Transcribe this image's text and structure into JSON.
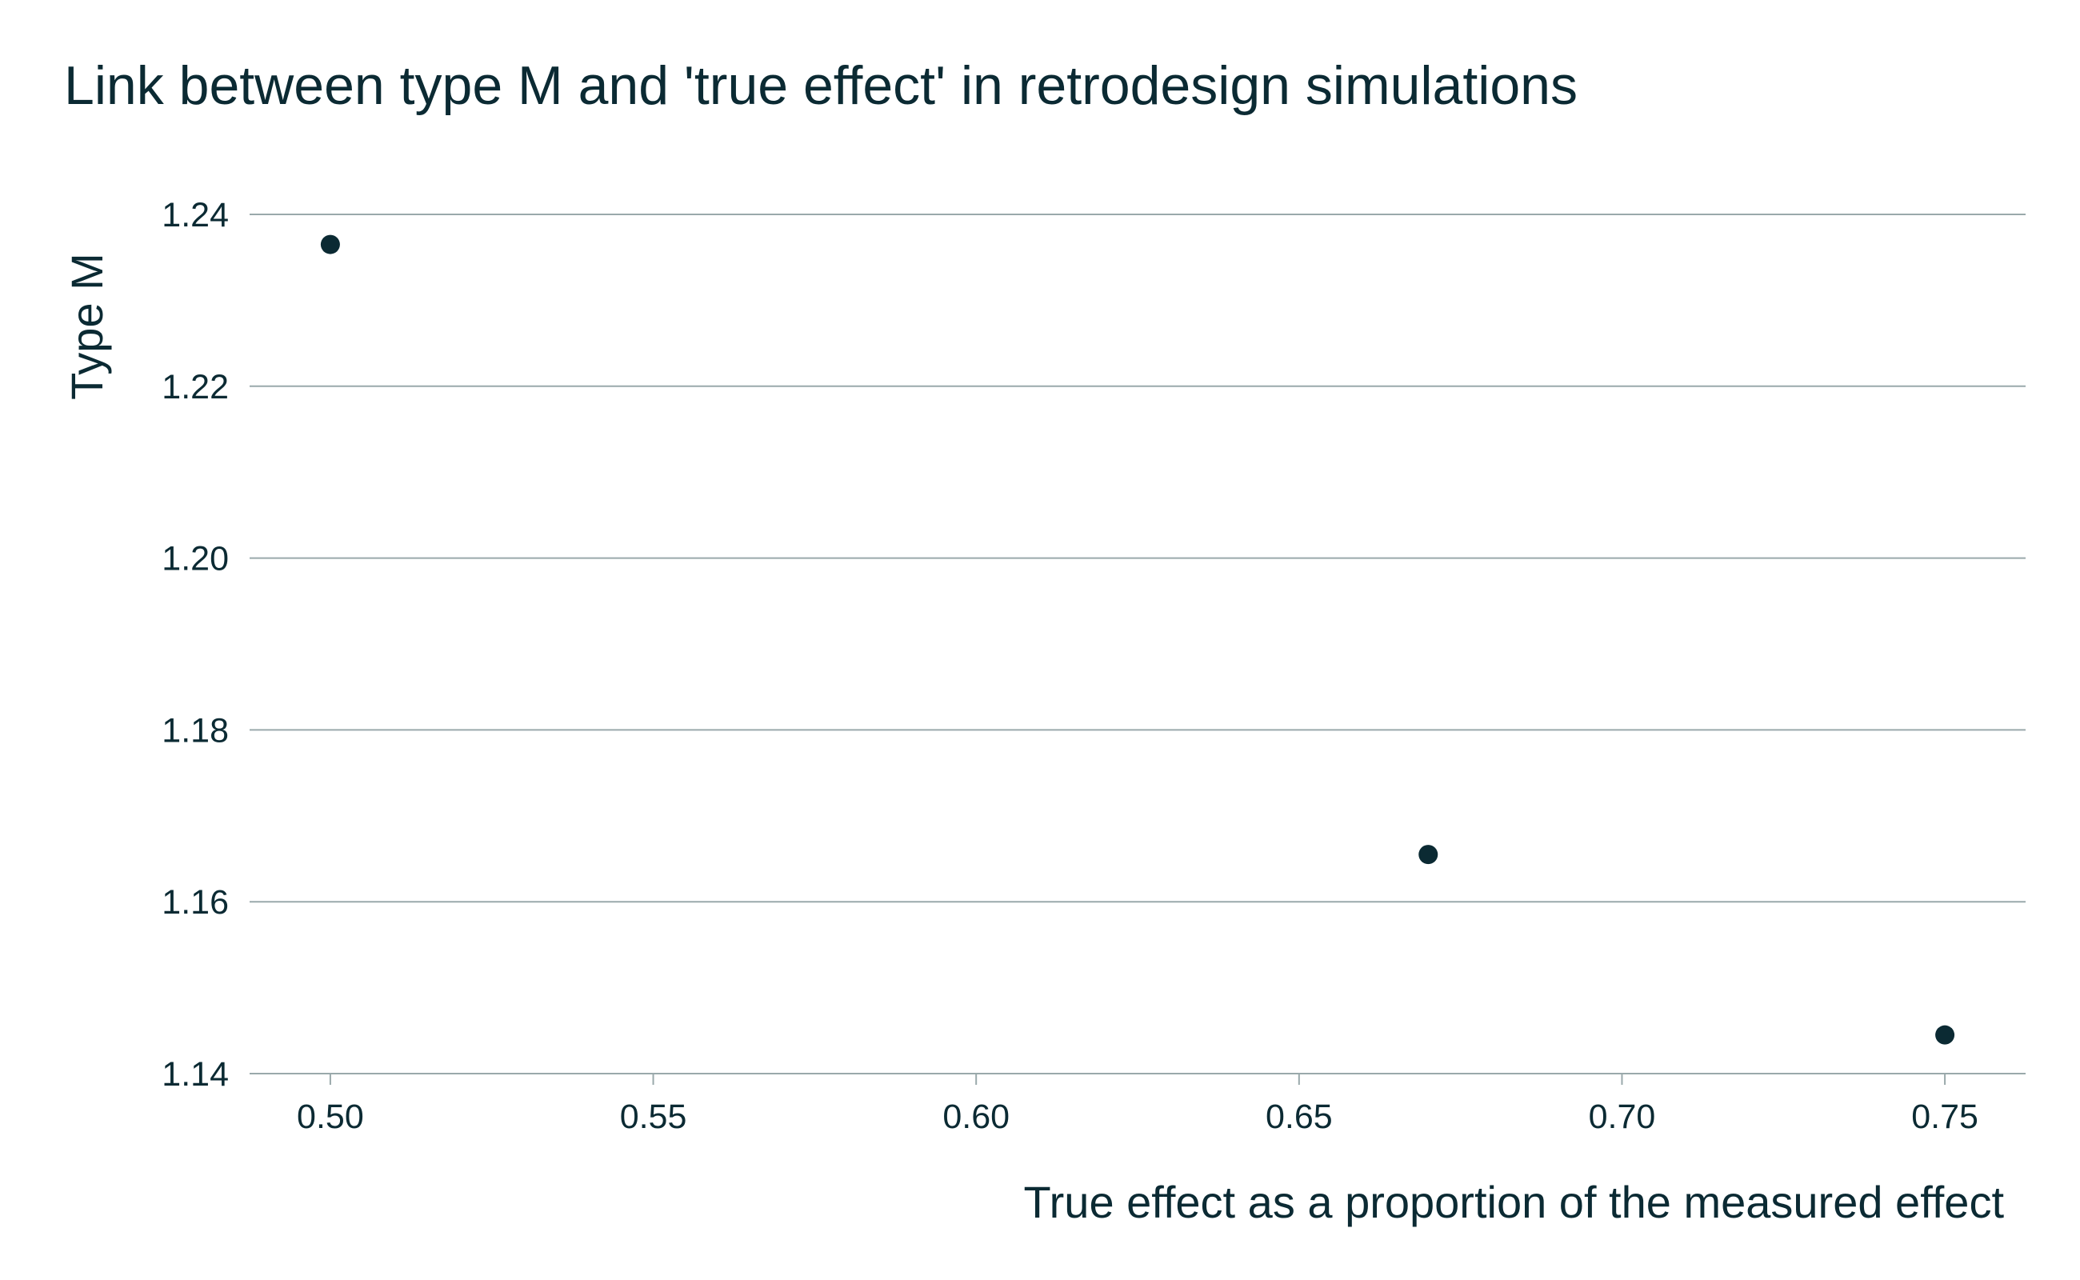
{
  "chart_data": {
    "type": "scatter",
    "title": "Link between type M and 'true effect' in retrodesign simulations",
    "xlabel": "True effect as a proportion of the measured effect",
    "ylabel": "Type M",
    "x": [
      0.5,
      0.67,
      0.75
    ],
    "y": [
      1.2365,
      1.1655,
      1.1445
    ],
    "xlim": [
      0.4875,
      0.7625
    ],
    "ylim": [
      1.14,
      1.24
    ],
    "xticks": [
      0.5,
      0.55,
      0.6,
      0.65,
      0.7,
      0.75
    ],
    "xtick_labels": [
      "0.50",
      "0.55",
      "0.60",
      "0.65",
      "0.70",
      "0.75"
    ],
    "yticks": [
      1.14,
      1.16,
      1.18,
      1.2,
      1.22,
      1.24
    ],
    "ytick_labels": [
      "1.14",
      "1.16",
      "1.18",
      "1.20",
      "1.22",
      "1.24"
    ],
    "grid": "horizontal",
    "colors": {
      "point": "#0b2a33",
      "grid": "#9aa9ab",
      "text": "#0b2a33"
    }
  }
}
